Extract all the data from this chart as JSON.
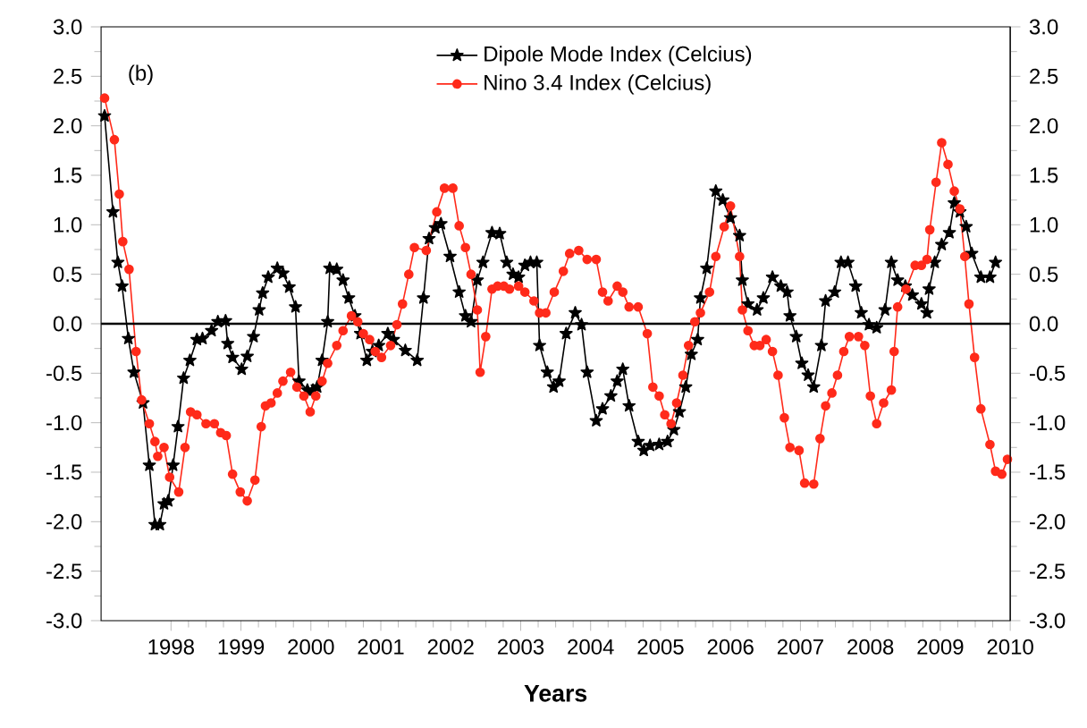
{
  "chart_data": {
    "type": "line",
    "xlabel": "Years",
    "annotations": [
      "(b)"
    ],
    "xlim": [
      1997,
      2010
    ],
    "xticks": [
      1998,
      1999,
      2000,
      2001,
      2002,
      2003,
      2004,
      2005,
      2006,
      2007,
      2008,
      2009,
      2010
    ],
    "ylim": [
      -3,
      3
    ],
    "yticks": [
      {
        "value": -3,
        "label": "-3.0"
      },
      {
        "value": -2.5,
        "label": "-2.5"
      },
      {
        "value": -2,
        "label": "-2.0"
      },
      {
        "value": -1.5,
        "label": "-1.5"
      },
      {
        "value": -1,
        "label": "-1.0"
      },
      {
        "value": -0.5,
        "label": "-0.5"
      },
      {
        "value": 0,
        "label": "0.0"
      },
      {
        "value": 0.5,
        "label": "0.5"
      },
      {
        "value": 1,
        "label": "1.0"
      },
      {
        "value": 1.5,
        "label": "1.5"
      },
      {
        "value": 2,
        "label": "2.0"
      },
      {
        "value": 2.5,
        "label": "2.5"
      },
      {
        "value": 3,
        "label": "3.0"
      }
    ],
    "y2lim": [
      -3,
      3
    ],
    "y2ticks": [
      {
        "value": -3,
        "label": "-3.0"
      },
      {
        "value": -2.5,
        "label": "-2.5"
      },
      {
        "value": -2,
        "label": "-2.0"
      },
      {
        "value": -1.5,
        "label": "-1.5"
      },
      {
        "value": -1,
        "label": "-1.0"
      },
      {
        "value": -0.5,
        "label": "-0.5"
      },
      {
        "value": 0,
        "label": "0.0"
      },
      {
        "value": 0.5,
        "label": "0.5"
      },
      {
        "value": 1,
        "label": "1.0"
      },
      {
        "value": 1.5,
        "label": "1.5"
      },
      {
        "value": 2,
        "label": "2.0"
      },
      {
        "value": 2.5,
        "label": "2.5"
      },
      {
        "value": 3,
        "label": "3.0"
      }
    ],
    "grid": false,
    "legend": "top",
    "line_style": "solid",
    "ref_lines": [
      {
        "axis": "y",
        "value": 0,
        "color": "#000000"
      }
    ],
    "series": [
      {
        "name": "Dipole Mode Index (Celcius)",
        "color": "#000000",
        "marker": "star",
        "x": [
          1997.05,
          1997.17,
          1997.24,
          1997.3,
          1997.39,
          1997.47,
          1997.6,
          1997.69,
          1997.77,
          1997.84,
          1997.9,
          1997.96,
          1998.03,
          1998.1,
          1998.18,
          1998.27,
          1998.37,
          1998.45,
          1998.58,
          1998.67,
          1998.78,
          1998.81,
          1998.88,
          1999.01,
          1999.09,
          1999.18,
          1999.26,
          1999.31,
          1999.39,
          1999.52,
          1999.6,
          1999.69,
          1999.78,
          1999.83,
          1999.95,
          2000.03,
          2000.09,
          2000.16,
          2000.24,
          2000.27,
          2000.37,
          2000.46,
          2000.54,
          2000.63,
          2000.71,
          2000.8,
          2000.88,
          2000.97,
          2001.1,
          2001.18,
          2001.35,
          2001.52,
          2001.61,
          2001.69,
          2001.78,
          2001.86,
          2001.99,
          2002.12,
          2002.21,
          2002.29,
          2002.38,
          2002.46,
          2002.59,
          2002.7,
          2002.8,
          2002.89,
          2002.97,
          2003.06,
          2003.14,
          2003.23,
          2003.27,
          2003.38,
          2003.47,
          2003.55,
          2003.65,
          2003.78,
          2003.87,
          2003.95,
          2004.08,
          2004.17,
          2004.29,
          2004.38,
          2004.46,
          2004.55,
          2004.68,
          2004.76,
          2004.85,
          2004.98,
          2005.1,
          2005.19,
          2005.27,
          2005.36,
          2005.44,
          2005.53,
          2005.57,
          2005.66,
          2005.79,
          2005.89,
          2006.0,
          2006.13,
          2006.17,
          2006.25,
          2006.38,
          2006.47,
          2006.6,
          2006.72,
          2006.81,
          2006.85,
          2006.94,
          2007.02,
          2007.11,
          2007.19,
          2007.3,
          2007.36,
          2007.49,
          2007.58,
          2007.68,
          2007.79,
          2007.87,
          2007.98,
          2008.09,
          2008.21,
          2008.3,
          2008.39,
          2008.5,
          2008.6,
          2008.73,
          2008.81,
          2008.84,
          2008.92,
          2009.02,
          2009.13,
          2009.2,
          2009.28,
          2009.37,
          2009.45,
          2009.58,
          2009.71,
          2009.79
        ],
        "values": [
          2.1,
          1.13,
          0.62,
          0.38,
          -0.15,
          -0.49,
          -0.8,
          -1.43,
          -2.03,
          -2.03,
          -1.82,
          -1.79,
          -1.43,
          -1.04,
          -0.55,
          -0.37,
          -0.16,
          -0.15,
          -0.07,
          0.02,
          0.03,
          -0.2,
          -0.34,
          -0.46,
          -0.33,
          -0.13,
          0.14,
          0.31,
          0.47,
          0.56,
          0.51,
          0.37,
          0.17,
          -0.58,
          -0.67,
          -0.67,
          -0.64,
          -0.37,
          0.02,
          0.56,
          0.55,
          0.44,
          0.26,
          0.08,
          -0.1,
          -0.37,
          -0.28,
          -0.22,
          -0.1,
          -0.16,
          -0.27,
          -0.37,
          0.26,
          0.86,
          0.97,
          1.01,
          0.68,
          0.32,
          0.08,
          0.02,
          0.44,
          0.62,
          0.92,
          0.91,
          0.62,
          0.5,
          0.47,
          0.59,
          0.62,
          0.62,
          -0.22,
          -0.49,
          -0.64,
          -0.58,
          -0.1,
          0.11,
          -0.01,
          -0.49,
          -0.98,
          -0.86,
          -0.73,
          -0.58,
          -0.46,
          -0.83,
          -1.19,
          -1.28,
          -1.23,
          -1.22,
          -1.19,
          -1.07,
          -0.89,
          -0.64,
          -0.31,
          -0.16,
          0.26,
          0.56,
          1.34,
          1.25,
          1.07,
          0.89,
          0.44,
          0.2,
          0.14,
          0.26,
          0.47,
          0.38,
          0.32,
          0.08,
          -0.13,
          -0.4,
          -0.52,
          -0.64,
          -0.22,
          0.23,
          0.32,
          0.62,
          0.62,
          0.38,
          0.11,
          -0.01,
          -0.04,
          0.14,
          0.62,
          0.44,
          0.38,
          0.29,
          0.2,
          0.11,
          0.35,
          0.62,
          0.8,
          0.92,
          1.22,
          1.13,
          0.98,
          0.71,
          0.47,
          0.47,
          0.62
        ]
      },
      {
        "name": "Nino 3.4 Index (Celcius)",
        "color": "#ff2a1a",
        "marker": "circle",
        "x": [
          1997.05,
          1997.19,
          1997.26,
          1997.31,
          1997.4,
          1997.5,
          1997.58,
          1997.69,
          1997.77,
          1997.81,
          1997.9,
          1997.98,
          1998.11,
          1998.2,
          1998.28,
          1998.37,
          1998.5,
          1998.62,
          1998.71,
          1998.79,
          1998.88,
          1998.99,
          1999.09,
          1999.2,
          1999.29,
          1999.35,
          1999.43,
          1999.52,
          1999.6,
          1999.71,
          1999.8,
          1999.9,
          1999.99,
          2000.07,
          2000.16,
          2000.24,
          2000.37,
          2000.46,
          2000.58,
          2000.67,
          2000.75,
          2000.84,
          2000.92,
          2001.01,
          2001.14,
          2001.23,
          2001.31,
          2001.4,
          2001.48,
          2001.65,
          2001.8,
          2001.91,
          2002.03,
          2002.12,
          2002.21,
          2002.29,
          2002.38,
          2002.42,
          2002.5,
          2002.59,
          2002.67,
          2002.76,
          2002.84,
          2002.97,
          2003.06,
          2003.19,
          2003.27,
          2003.36,
          2003.48,
          2003.61,
          2003.7,
          2003.83,
          2003.95,
          2004.08,
          2004.17,
          2004.25,
          2004.38,
          2004.46,
          2004.55,
          2004.68,
          2004.81,
          2004.89,
          2004.98,
          2005.06,
          2005.15,
          2005.23,
          2005.32,
          2005.4,
          2005.49,
          2005.57,
          2005.7,
          2005.79,
          2005.91,
          2006.0,
          2006.13,
          2006.17,
          2006.25,
          2006.34,
          2006.42,
          2006.51,
          2006.6,
          2006.68,
          2006.77,
          2006.85,
          2006.98,
          2007.06,
          2007.19,
          2007.28,
          2007.36,
          2007.45,
          2007.53,
          2007.62,
          2007.7,
          2007.83,
          2007.92,
          2008.0,
          2008.09,
          2008.19,
          2008.3,
          2008.34,
          2008.39,
          2008.51,
          2008.64,
          2008.73,
          2008.81,
          2008.85,
          2008.94,
          2009.02,
          2009.11,
          2009.2,
          2009.28,
          2009.35,
          2009.41,
          2009.49,
          2009.58,
          2009.71,
          2009.79,
          2009.88,
          2009.96
        ],
        "values": [
          2.28,
          1.86,
          1.31,
          0.83,
          0.55,
          -0.28,
          -0.77,
          -1.01,
          -1.19,
          -1.34,
          -1.25,
          -1.55,
          -1.7,
          -1.25,
          -0.89,
          -0.92,
          -1.01,
          -1.01,
          -1.1,
          -1.13,
          -1.52,
          -1.7,
          -1.79,
          -1.58,
          -1.04,
          -0.83,
          -0.8,
          -0.7,
          -0.58,
          -0.49,
          -0.64,
          -0.73,
          -0.89,
          -0.73,
          -0.58,
          -0.4,
          -0.22,
          -0.07,
          0.08,
          0.02,
          -0.1,
          -0.16,
          -0.28,
          -0.34,
          -0.22,
          -0.01,
          0.2,
          0.5,
          0.77,
          0.74,
          1.13,
          1.37,
          1.37,
          0.99,
          0.77,
          0.5,
          0.14,
          -0.49,
          -0.13,
          0.35,
          0.38,
          0.38,
          0.35,
          0.38,
          0.32,
          0.23,
          0.11,
          0.11,
          0.32,
          0.53,
          0.71,
          0.74,
          0.65,
          0.65,
          0.32,
          0.23,
          0.38,
          0.32,
          0.17,
          0.17,
          -0.1,
          -0.64,
          -0.73,
          -0.92,
          -1.01,
          -0.8,
          -0.52,
          -0.22,
          0.02,
          0.11,
          0.32,
          0.68,
          0.98,
          1.19,
          0.68,
          0.14,
          -0.07,
          -0.22,
          -0.22,
          -0.16,
          -0.28,
          -0.52,
          -0.95,
          -1.25,
          -1.28,
          -1.61,
          -1.62,
          -1.16,
          -0.83,
          -0.7,
          -0.52,
          -0.28,
          -0.13,
          -0.13,
          -0.22,
          -0.73,
          -1.01,
          -0.8,
          -0.67,
          -0.28,
          0.17,
          0.35,
          0.59,
          0.59,
          0.65,
          0.95,
          1.43,
          1.83,
          1.61,
          1.34,
          1.16,
          0.68,
          0.2,
          -0.34,
          -0.86,
          -1.22,
          -1.49,
          -1.52,
          -1.37
        ]
      }
    ]
  }
}
